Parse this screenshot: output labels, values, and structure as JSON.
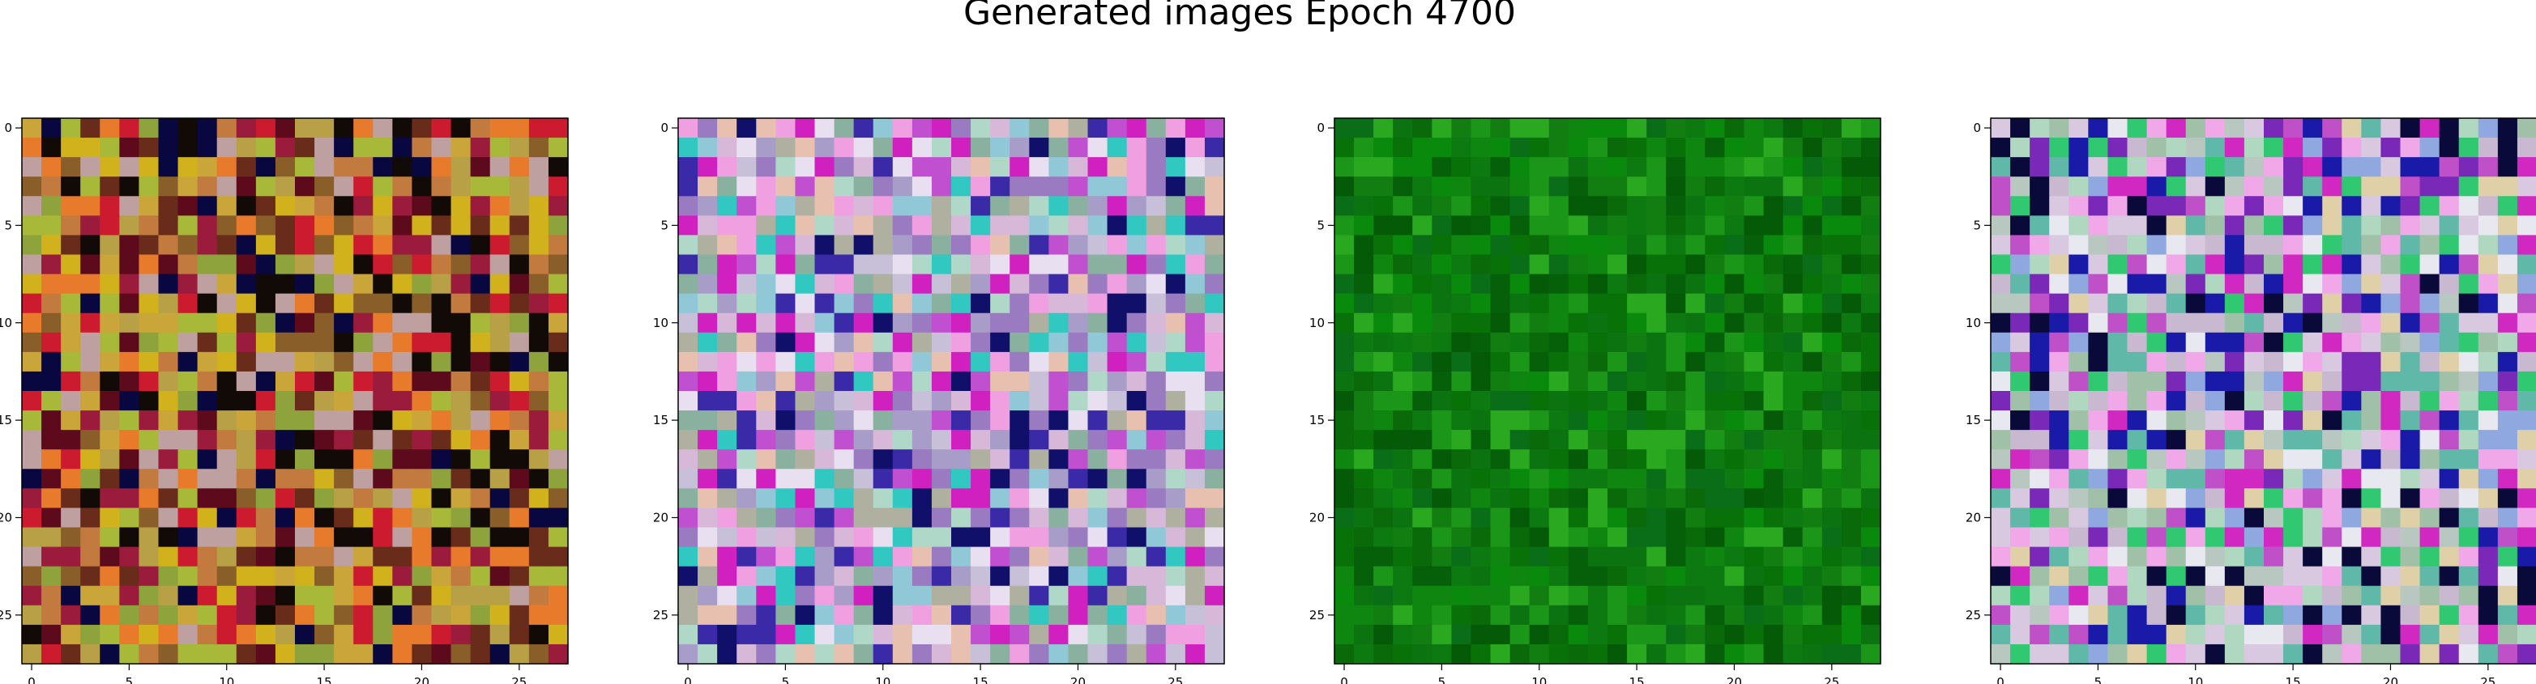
{
  "figure": {
    "title": "Generated images Epoch 4700"
  },
  "chart_data": [
    {
      "type": "heatmap",
      "grid_size": [
        28,
        28
      ],
      "x_ticks": [
        "0",
        "5",
        "10",
        "15",
        "20",
        "25"
      ],
      "y_ticks": [
        "0",
        "5",
        "10",
        "15",
        "20",
        "25"
      ],
      "palette": [
        "#c9a53a",
        "#d1b21d",
        "#b8a046",
        "#8fa33c",
        "#c27a3e",
        "#9a1b3c",
        "#5c0a1c",
        "#120a06",
        "#090740",
        "#6a2c1a",
        "#bfa0a0",
        "#e87a2c",
        "#cc1a2e",
        "#8a5e28",
        "#a8b838"
      ],
      "mean_color": "#a88a3a"
    },
    {
      "type": "heatmap",
      "grid_size": [
        28,
        28
      ],
      "x_ticks": [
        "0",
        "5",
        "10",
        "15",
        "20",
        "25"
      ],
      "y_ticks": [
        "0",
        "5",
        "10",
        "15",
        "20",
        "25"
      ],
      "palette": [
        "#c8c0d8",
        "#a89cc8",
        "#d8b8d8",
        "#9a7ac0",
        "#c050d0",
        "#d020c0",
        "#f0a0e0",
        "#8ab0a0",
        "#b0d8c8",
        "#90c8d8",
        "#e8e0f0",
        "#3a2aa8",
        "#10106a",
        "#b0b0a0",
        "#e8c0b0",
        "#30c8c0"
      ],
      "mean_color": "#c0b0d0"
    },
    {
      "type": "heatmap",
      "grid_size": [
        28,
        28
      ],
      "x_ticks": [
        "0",
        "5",
        "10",
        "15",
        "20",
        "25"
      ],
      "y_ticks": [
        "0",
        "5",
        "10",
        "15",
        "20",
        "25"
      ],
      "palette": [
        "#0a6a0a",
        "#0c7a10",
        "#087208",
        "#0a8a0c",
        "#06600a",
        "#127e12",
        "#055a08",
        "#0e8610",
        "#1c9618",
        "#0a6e18",
        "#2aa820",
        "#0b7410"
      ],
      "mean_color": "#0a7410"
    },
    {
      "type": "heatmap",
      "grid_size": [
        28,
        28
      ],
      "x_ticks": [
        "0",
        "5",
        "10",
        "15",
        "20",
        "25"
      ],
      "y_ticks": [
        "0",
        "5",
        "10",
        "15",
        "20",
        "25"
      ],
      "palette": [
        "#b8c8c0",
        "#c8b8d0",
        "#a0c0a8",
        "#d8c8e0",
        "#c050c8",
        "#7a28b8",
        "#1a1aa8",
        "#0a0a3a",
        "#f0a8e8",
        "#e8e8f0",
        "#60b8a8",
        "#90a8e0",
        "#30c870",
        "#b0d8c0",
        "#e0d0a8",
        "#d028c0"
      ],
      "mean_color": "#c0c0c8"
    }
  ]
}
